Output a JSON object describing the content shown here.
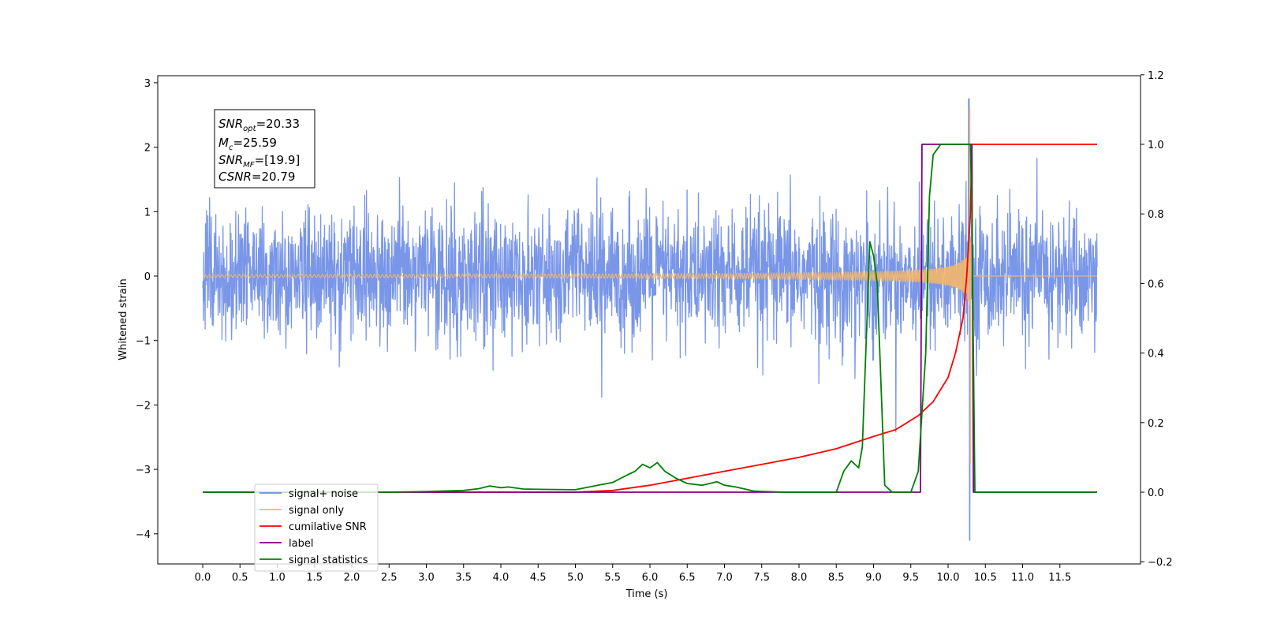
{
  "chart_data": {
    "type": "line",
    "xlabel": "Time (s)",
    "ylabel": "Whitened strain",
    "xlim": [
      -0.6,
      12.6
    ],
    "ylim": [
      -4.5,
      3.1
    ],
    "ylim_right": [
      -0.2,
      1.2
    ],
    "grid": false,
    "legend_position": "lower-left",
    "x_tick_labels": [
      "0.0",
      "0.5",
      "1.0",
      "1.5",
      "2.0",
      "2.5",
      "3.0",
      "3.5",
      "4.0",
      "4.5",
      "5.0",
      "5.5",
      "6.0",
      "6.5",
      "7.0",
      "7.5",
      "8.0",
      "8.5",
      "9.0",
      "9.5",
      "10.0",
      "10.5",
      "11.0",
      "11.5"
    ],
    "y_tick_labels": [
      "3",
      "2",
      "1",
      "0",
      "−1",
      "−2",
      "−3",
      "−4"
    ],
    "y_right_tick_labels": [
      "1.2",
      "1.0",
      "0.8",
      "0.6",
      "0.4",
      "0.2",
      "0.0",
      "−0.2"
    ],
    "annotation": {
      "snr_opt_base": "SNR",
      "snr_opt_sub": "opt",
      "snr_opt_value": "=20.33",
      "mc_base": "M",
      "mc_sub": "c",
      "mc_value": "=25.59",
      "snr_mf_base": "SNR",
      "snr_mf_sub": "MF",
      "snr_mf_value": "=[19.9]",
      "csnr_base": "CSNR",
      "csnr_value": "=20.79"
    },
    "series": [
      {
        "name": "signal+ noise",
        "color": "#6a8be6",
        "axis": "left",
        "style": "noise band",
        "t_range": [
          0.0,
          12.0
        ],
        "typical_amplitude": 1.1,
        "max": 2.75,
        "min": -4.1
      },
      {
        "name": "signal only",
        "color": "#f4b66a",
        "axis": "left",
        "style": "chirp",
        "t_range": [
          0.0,
          12.0
        ],
        "merger_time": 10.3,
        "peak_amplitude": 2.6,
        "min_amplitude": -2.9
      },
      {
        "name": "cumilative SNR",
        "color": "#ff0000",
        "axis": "right",
        "x": [
          0.0,
          5.0,
          5.5,
          6.0,
          6.5,
          7.0,
          7.5,
          8.0,
          8.5,
          9.0,
          9.3,
          9.6,
          9.8,
          10.0,
          10.1,
          10.2,
          10.25,
          10.3,
          10.32,
          12.0
        ],
        "y": [
          0.0,
          0.0,
          0.005,
          0.02,
          0.04,
          0.06,
          0.08,
          0.1,
          0.125,
          0.16,
          0.18,
          0.22,
          0.26,
          0.33,
          0.4,
          0.5,
          0.62,
          0.8,
          1.0,
          1.0
        ]
      },
      {
        "name": "label",
        "color": "#800080",
        "axis": "right",
        "x": [
          0.0,
          9.63,
          9.65,
          10.32,
          10.34,
          12.0
        ],
        "y": [
          0.0,
          0.0,
          1.0,
          1.0,
          0.0,
          0.0
        ]
      },
      {
        "name": "signal statistics",
        "color": "#008000",
        "axis": "right",
        "x": [
          0.0,
          2.5,
          3.0,
          3.5,
          3.7,
          3.85,
          4.0,
          4.1,
          4.3,
          4.6,
          5.0,
          5.3,
          5.5,
          5.7,
          5.8,
          5.9,
          6.0,
          6.1,
          6.2,
          6.35,
          6.5,
          6.7,
          6.9,
          7.0,
          7.15,
          7.4,
          7.8,
          8.5,
          8.6,
          8.7,
          8.8,
          8.85,
          8.95,
          9.0,
          9.05,
          9.15,
          9.25,
          9.5,
          9.6,
          9.7,
          9.75,
          9.8,
          9.9,
          10.0,
          10.2,
          10.3,
          10.32,
          10.36,
          12.0
        ],
        "y": [
          0.0,
          0.0,
          0.002,
          0.005,
          0.01,
          0.018,
          0.013,
          0.015,
          0.009,
          0.008,
          0.007,
          0.02,
          0.028,
          0.05,
          0.06,
          0.08,
          0.07,
          0.085,
          0.06,
          0.04,
          0.025,
          0.02,
          0.03,
          0.02,
          0.015,
          0.003,
          0.0,
          0.0,
          0.06,
          0.09,
          0.07,
          0.13,
          0.72,
          0.68,
          0.6,
          0.02,
          0.0,
          0.0,
          0.06,
          0.4,
          0.85,
          0.97,
          1.0,
          1.0,
          1.0,
          1.0,
          0.8,
          0.0,
          0.0
        ]
      }
    ]
  }
}
